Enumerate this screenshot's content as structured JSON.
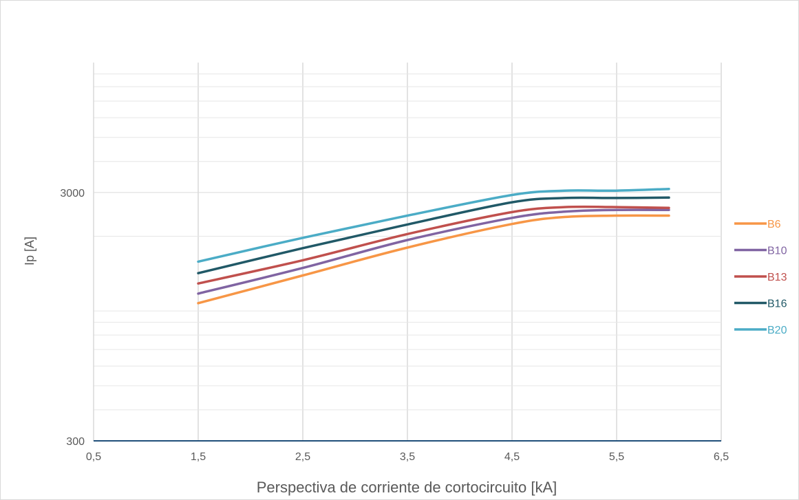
{
  "chart_data": {
    "type": "line",
    "title": "",
    "xlabel": "Perspectiva de corriente de cortocircuito [kA]",
    "ylabel": "Ip [A]",
    "xlim": [
      0.5,
      6.5
    ],
    "ylim": [
      300,
      10000
    ],
    "y_scale": "log",
    "grid": true,
    "legend_position": "right",
    "x_ticks": [
      0.5,
      1.5,
      2.5,
      3.5,
      4.5,
      5.5,
      6.5
    ],
    "x_tick_labels": [
      "0,5",
      "1,5",
      "2,5",
      "3,5",
      "4,5",
      "5,5",
      "6,5"
    ],
    "y_ticks": [
      300,
      3000
    ],
    "y_tick_labels": [
      "300",
      "3000"
    ],
    "x": [
      1.5,
      2.5,
      3.5,
      4.5,
      5.0,
      5.5,
      6.0
    ],
    "series": [
      {
        "name": "B6",
        "color": "#F79646",
        "values": [
          1075,
          1390,
          1800,
          2240,
          2390,
          2420,
          2420
        ]
      },
      {
        "name": "B10",
        "color": "#8064A2",
        "values": [
          1175,
          1490,
          1930,
          2370,
          2510,
          2550,
          2550
        ]
      },
      {
        "name": "B13",
        "color": "#C0504D",
        "values": [
          1290,
          1600,
          2040,
          2500,
          2620,
          2620,
          2600
        ]
      },
      {
        "name": "B16",
        "color": "#215967",
        "values": [
          1420,
          1790,
          2230,
          2740,
          2850,
          2850,
          2860
        ]
      },
      {
        "name": "B20",
        "color": "#4BACC6",
        "values": [
          1580,
          1970,
          2420,
          2930,
          3050,
          3050,
          3100
        ]
      }
    ]
  }
}
